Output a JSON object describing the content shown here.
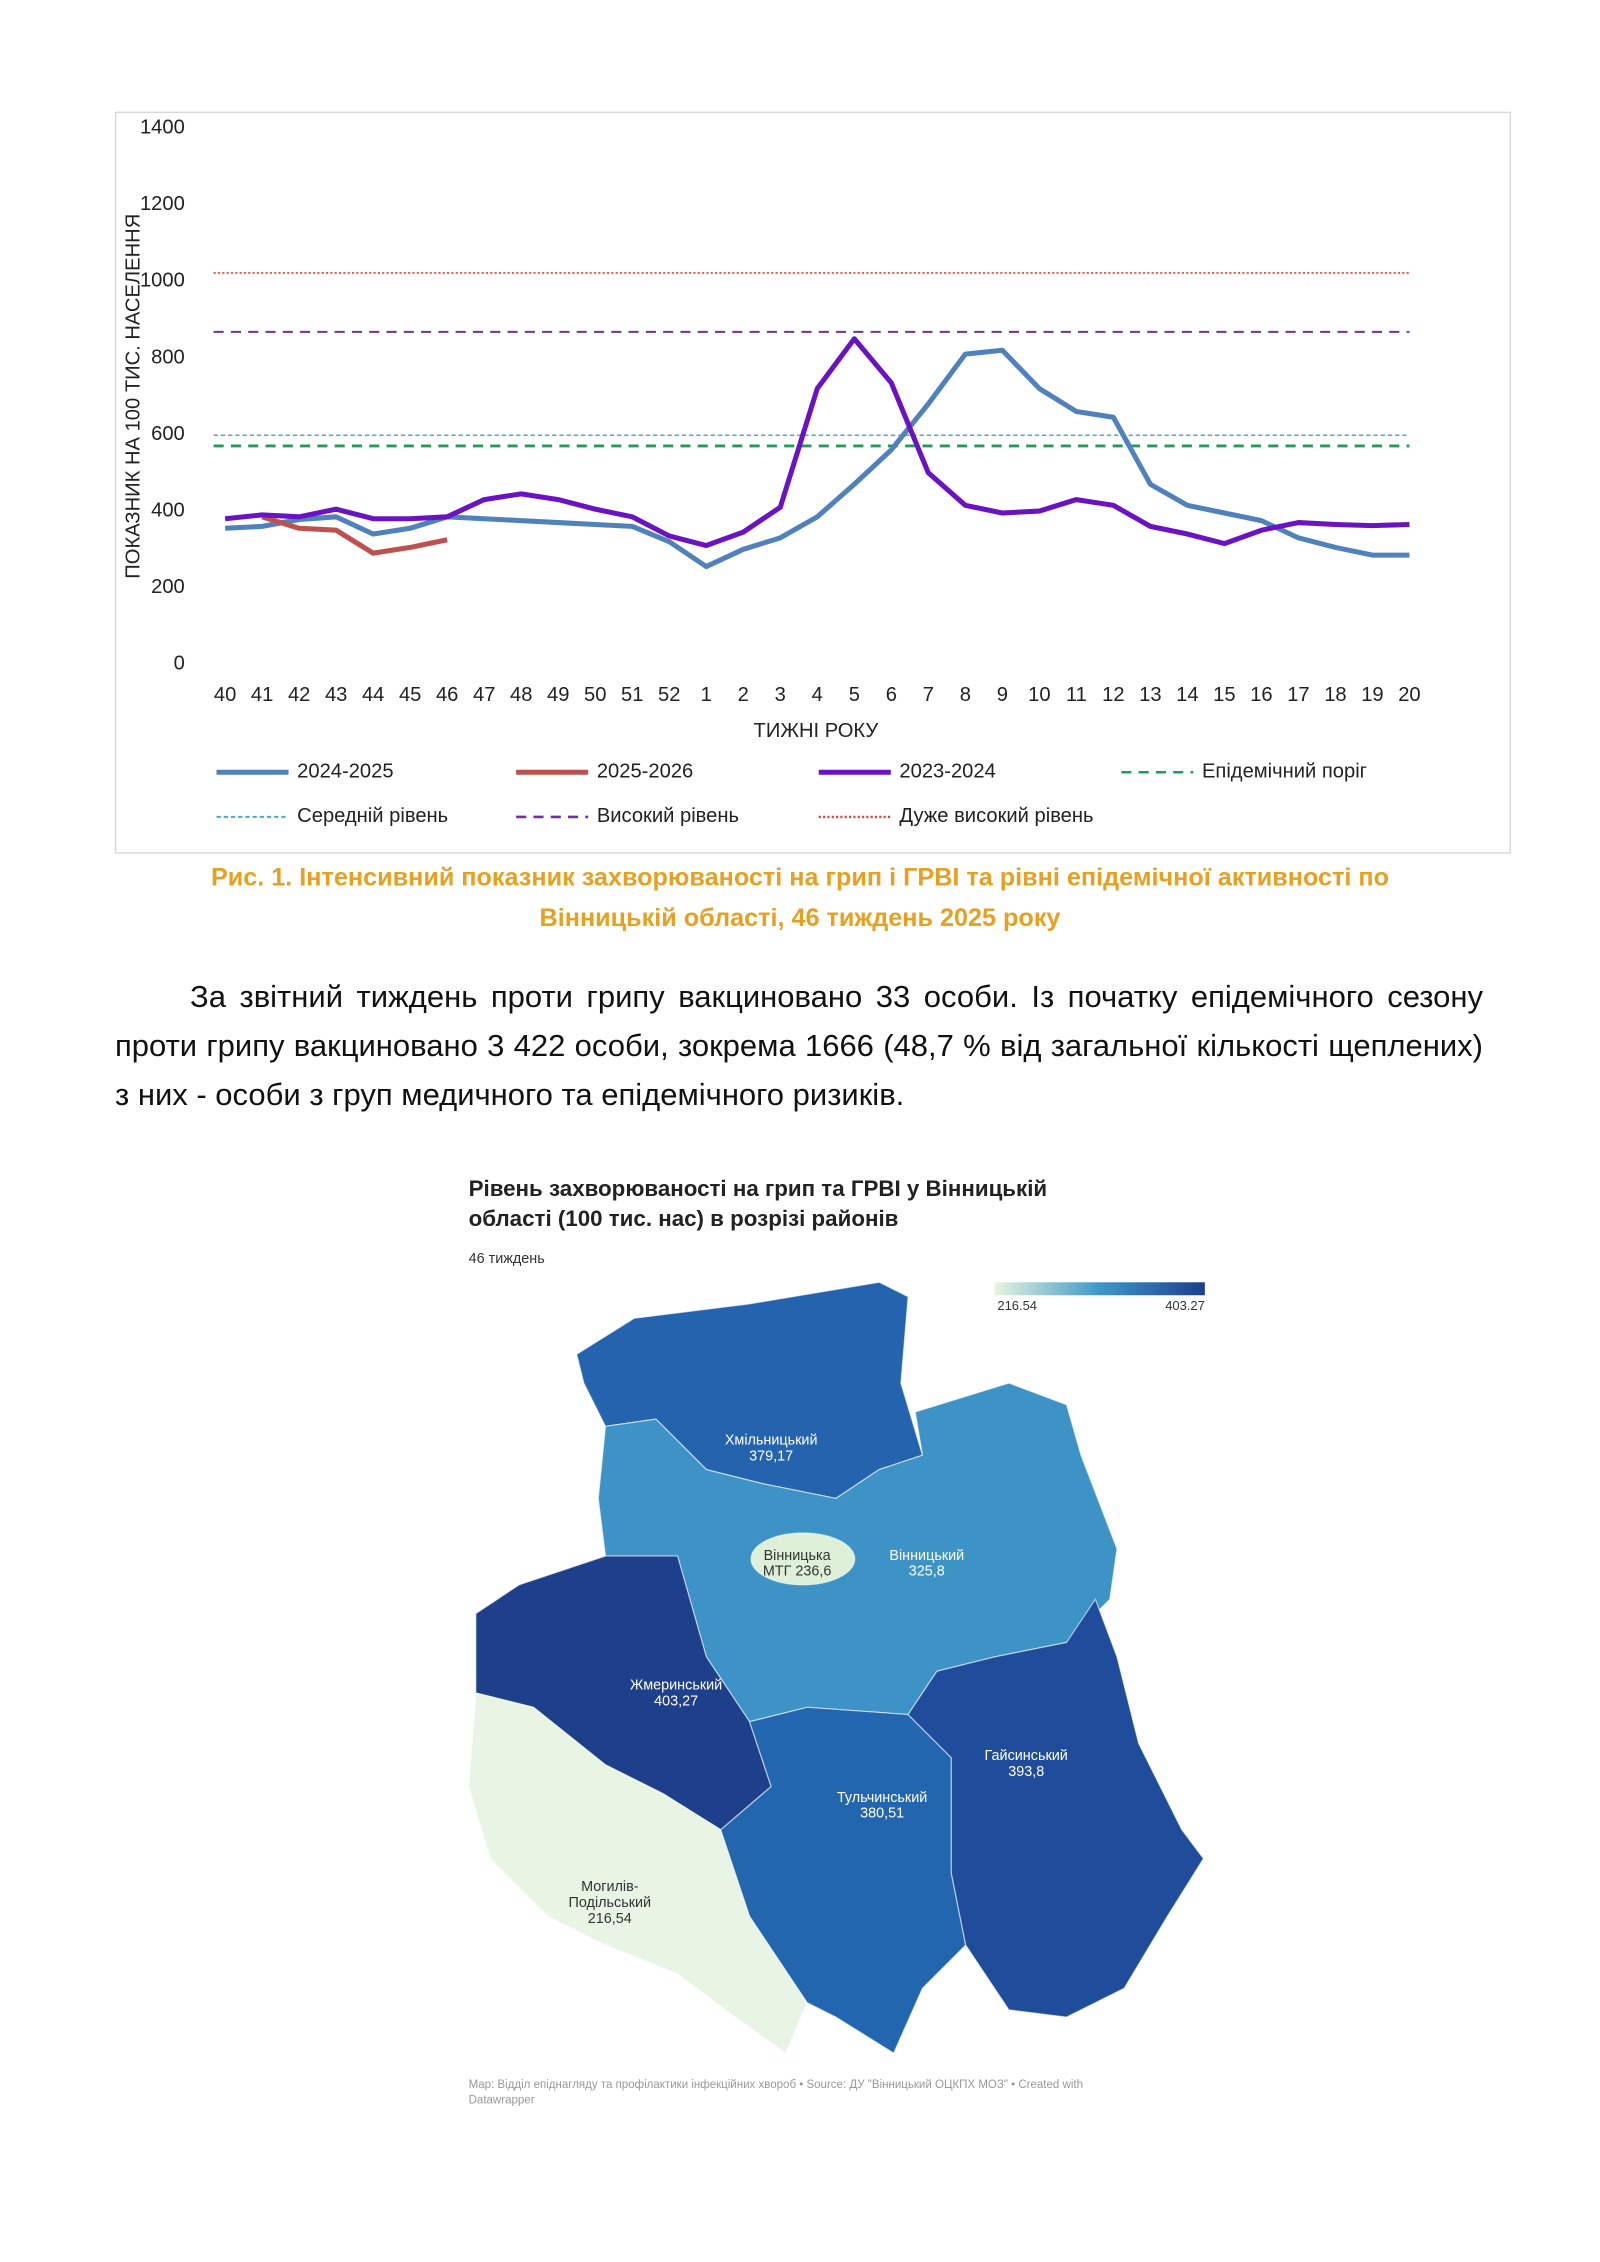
{
  "chart_data": {
    "type": "line",
    "y_label": "ПОКАЗНИК НА 100 ТИС. НАСЕЛЕННЯ",
    "x_label": "ТИЖНІ РОКУ",
    "categories": [
      "40",
      "41",
      "42",
      "43",
      "44",
      "45",
      "46",
      "47",
      "48",
      "49",
      "50",
      "51",
      "52",
      "1",
      "2",
      "3",
      "4",
      "5",
      "6",
      "7",
      "8",
      "9",
      "10",
      "11",
      "12",
      "13",
      "14",
      "15",
      "16",
      "17",
      "18",
      "19",
      "20"
    ],
    "ylim": [
      0,
      1400
    ],
    "yticks": [
      0,
      200,
      400,
      600,
      800,
      1000,
      1200,
      1400
    ],
    "series": [
      {
        "name": "2024-2025",
        "color": "#4f81bd",
        "values": [
          355,
          360,
          378,
          385,
          340,
          355,
          385,
          380,
          375,
          370,
          365,
          360,
          320,
          255,
          300,
          330,
          385,
          470,
          560,
          680,
          810,
          820,
          720,
          660,
          645,
          470,
          415,
          395,
          375,
          330,
          305,
          285,
          285
        ]
      },
      {
        "name": "2025-2026",
        "color": "#c0504d",
        "values": [
          null,
          385,
          355,
          350,
          290,
          305,
          325,
          null,
          null,
          null,
          null,
          null,
          null,
          null,
          null,
          null,
          null,
          null,
          null,
          null,
          null,
          null,
          null,
          null,
          null,
          null,
          null,
          null,
          null,
          null,
          null,
          null,
          null
        ]
      },
      {
        "name": "2023-2024",
        "color": "#6b13c4",
        "values": [
          380,
          390,
          385,
          405,
          380,
          380,
          385,
          430,
          445,
          430,
          405,
          385,
          335,
          310,
          345,
          410,
          720,
          850,
          735,
          500,
          415,
          395,
          400,
          430,
          415,
          360,
          340,
          315,
          350,
          370,
          365,
          362,
          365
        ]
      }
    ],
    "thresholds": [
      {
        "name": "Епідемічний поріг",
        "color": "#1e9e5a",
        "value": 570,
        "style": "dashed"
      },
      {
        "name": "Середній рівень",
        "color": "#4bacc6",
        "value": 598,
        "style": "fine-dashed"
      },
      {
        "name": "Високий рівень",
        "color": "#7030a0",
        "value": 868,
        "style": "dashed"
      },
      {
        "name": "Дуже високий рівень",
        "color": "#e0433a",
        "value": 1022,
        "style": "dotted"
      }
    ]
  },
  "caption": [
    "Рис. 1. Інтенсивний показник захворюваності на грип і ГРВІ та рівні епідемічної активності  по",
    "Вінницькій області, 46 тиждень 2025 року"
  ],
  "paragraph": "За звітний тиждень проти грипу вакциновано 33 особи. Із початку епідемічного сезону проти грипу вакциновано 3 422 особи, зокрема 1666 (48,7 % від загальної кількості щеплених) з них - особи з груп медичного та епідемічного ризиків.",
  "map": {
    "title": [
      "Рівень захворюваності на грип та ГРВІ у Вінницькій",
      "області (100 тис. нас) в розрізі районів"
    ],
    "subtitle": "46 тиждень",
    "legend": {
      "min": "216.54",
      "max": "403.27"
    },
    "regions": [
      {
        "lines": [
          "Хмільницький",
          "379,17"
        ]
      },
      {
        "lines": [
          "Вінницька",
          "МТГ 236,6"
        ]
      },
      {
        "lines": [
          "Вінницький",
          "325,8"
        ]
      },
      {
        "lines": [
          "Жмеринський",
          "403,27"
        ]
      },
      {
        "lines": [
          "Гайсинський",
          "393,8"
        ]
      },
      {
        "lines": [
          "Тульчинський",
          "380,51"
        ]
      },
      {
        "lines": [
          "Могилів-",
          "Подільський",
          "216,54"
        ]
      }
    ],
    "footer": [
      "Map: Відділ епіднагляду та профілактики інфекційних хвороб • Source: ДУ \"Вінницький ОЦКПХ МОЗ\" • Created with",
      "Datawrapper"
    ]
  }
}
